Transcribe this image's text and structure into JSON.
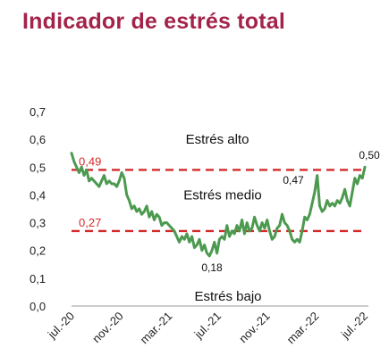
{
  "colors": {
    "title": "#a3234a",
    "line": "#4c9a4f",
    "threshold": "#d42a2a",
    "axis": "#999999"
  },
  "chart_data": {
    "type": "line",
    "title": "Indicador de estrés total",
    "xlabel": "",
    "ylabel": "",
    "ylim": [
      0,
      0.7
    ],
    "yticks": [
      "0,0",
      "0,1",
      "0,2",
      "0,3",
      "0,4",
      "0,5",
      "0,6",
      "0,7"
    ],
    "xticks": [
      "jul.-20",
      "nov.-20",
      "mar.-21",
      "jul.-21",
      "nov.-21",
      "mar.-22",
      "jul.-22"
    ],
    "grid": false,
    "zones": [
      "Estrés alto",
      "Estrés medio",
      "Estrés bajo"
    ],
    "thresholds": [
      {
        "label": "0,49",
        "value": 0.49
      },
      {
        "label": "0,27",
        "value": 0.27
      }
    ],
    "annotations": [
      {
        "label": "0,18",
        "value": 0.18
      },
      {
        "label": "0,47",
        "value": 0.47
      },
      {
        "label": "0,50",
        "value": 0.5
      }
    ],
    "series": [
      {
        "values": [
          0.55,
          0.52,
          0.5,
          0.48,
          0.5,
          0.47,
          0.49,
          0.45,
          0.46,
          0.45,
          0.44,
          0.43,
          0.45,
          0.47,
          0.44,
          0.45,
          0.44,
          0.44,
          0.43,
          0.45,
          0.48,
          0.46,
          0.4,
          0.38,
          0.35,
          0.36,
          0.34,
          0.35,
          0.33,
          0.34,
          0.36,
          0.32,
          0.34,
          0.31,
          0.33,
          0.32,
          0.29,
          0.3,
          0.3,
          0.29,
          0.28,
          0.27,
          0.25,
          0.23,
          0.25,
          0.24,
          0.26,
          0.23,
          0.25,
          0.21,
          0.22,
          0.24,
          0.2,
          0.22,
          0.19,
          0.18,
          0.2,
          0.23,
          0.19,
          0.24,
          0.25,
          0.24,
          0.29,
          0.25,
          0.27,
          0.26,
          0.29,
          0.27,
          0.31,
          0.26,
          0.3,
          0.27,
          0.28,
          0.32,
          0.29,
          0.27,
          0.3,
          0.28,
          0.31,
          0.27,
          0.24,
          0.25,
          0.28,
          0.29,
          0.33,
          0.3,
          0.29,
          0.27,
          0.24,
          0.23,
          0.24,
          0.23,
          0.27,
          0.32,
          0.31,
          0.33,
          0.37,
          0.41,
          0.47,
          0.36,
          0.34,
          0.35,
          0.38,
          0.36,
          0.37,
          0.36,
          0.38,
          0.37,
          0.39,
          0.42,
          0.38,
          0.36,
          0.41,
          0.46,
          0.44,
          0.47,
          0.46,
          0.5
        ]
      }
    ]
  }
}
